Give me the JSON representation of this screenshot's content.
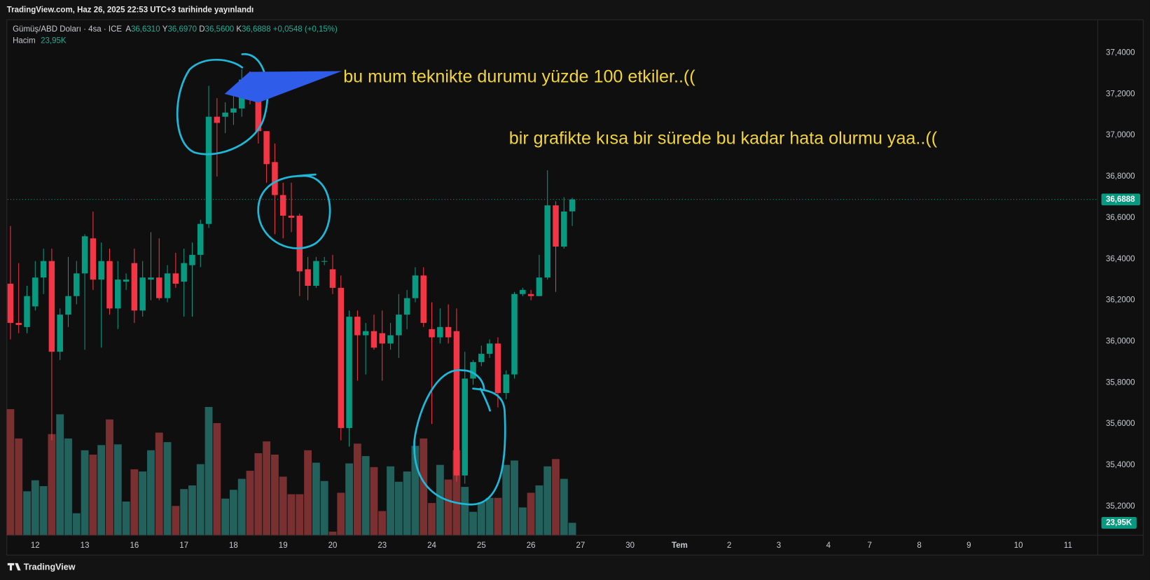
{
  "header": "TradingView.com, Haz 26, 2025 22:53 UTC+3 tarihinde yayınlandı",
  "footer": "TradingView",
  "chart_data": {
    "type": "candlestick",
    "legend": {
      "symbol": "Gümüş/ABD Doları · 4sa · ICE",
      "open_label": "A",
      "open": "36,6310",
      "high_label": "Y",
      "high": "36,6970",
      "low_label": "D",
      "low": "36,5600",
      "close_label": "K",
      "close": "36,6888",
      "change": "+0,0548 (+0,15%)",
      "volume_label": "Hacim",
      "volume": "23,95K"
    },
    "annotations": [
      "bu mum teknikte  durumu yüzde 100 etkiler..((",
      "bir grafikte kısa bir sürede bu kadar hata olurmu yaa..(("
    ],
    "open": [
      36.28,
      36.09,
      36.07,
      36.17,
      36.31,
      36.39,
      35.95,
      36.13,
      36.22,
      36.33,
      36.5,
      36.3,
      36.39,
      36.16,
      36.29,
      36.38,
      36.15,
      36.3,
      36.31,
      36.21,
      36.33,
      36.29,
      36.37,
      36.42,
      36.57,
      37.09,
      37.09,
      37.11,
      37.13,
      37.27,
      37.25,
      37.02,
      36.87,
      36.71,
      36.61,
      36.61,
      36.35,
      36.27,
      36.39,
      36.35,
      36.26,
      35.58,
      36.12,
      36.03,
      36.05,
      36.04,
      35.99,
      36.03,
      36.13,
      36.21,
      36.32,
      36.06,
      36.02,
      36.07,
      36.05,
      35.35,
      35.82,
      35.9,
      35.94,
      35.99,
      35.75,
      35.84,
      36.23,
      36.23,
      36.22,
      36.31,
      36.66,
      36.46,
      36.631
    ],
    "high": [
      36.56,
      36.38,
      36.27,
      36.39,
      36.45,
      36.45,
      36.16,
      36.41,
      36.39,
      36.52,
      36.63,
      36.48,
      36.45,
      36.39,
      36.33,
      36.45,
      36.39,
      36.53,
      36.5,
      36.37,
      36.43,
      36.45,
      36.48,
      36.59,
      37.24,
      37.18,
      37.16,
      37.21,
      37.32,
      37.31,
      37.27,
      37.02,
      36.96,
      36.77,
      36.77,
      36.62,
      36.41,
      36.41,
      36.41,
      36.42,
      36.32,
      36.15,
      36.15,
      36.09,
      36.13,
      36.15,
      36.09,
      36.23,
      36.25,
      36.36,
      36.36,
      36.19,
      36.16,
      36.18,
      36.16,
      35.95,
      35.91,
      35.98,
      36.01,
      36.02,
      35.86,
      36.24,
      36.26,
      36.25,
      36.42,
      36.83,
      36.68,
      36.7,
      36.697
    ],
    "low": [
      36.01,
      36.04,
      36.04,
      36.15,
      36.23,
      35.52,
      35.91,
      36.07,
      36.18,
      35.96,
      36.25,
      35.97,
      36.13,
      36.06,
      36.25,
      36.09,
      36.12,
      36.2,
      36.2,
      36.19,
      36.26,
      36.12,
      36.12,
      36.36,
      36.55,
      36.8,
      37.01,
      37.05,
      37.09,
      37.15,
      36.96,
      36.77,
      36.52,
      36.5,
      36.53,
      36.22,
      36.2,
      36.26,
      36.37,
      36.23,
      35.52,
      35.49,
      35.81,
      35.84,
      35.96,
      35.81,
      35.96,
      35.92,
      36.06,
      36.19,
      36.07,
      35.6,
      35.99,
      35.99,
      35.32,
      35.31,
      35.79,
      35.88,
      35.92,
      35.68,
      35.72,
      35.82,
      36.22,
      36.2,
      36.22,
      36.3,
      36.24,
      36.45,
      36.56
    ],
    "close": [
      36.09,
      36.08,
      36.22,
      36.31,
      36.39,
      35.95,
      36.13,
      36.22,
      36.33,
      36.51,
      36.3,
      36.39,
      36.16,
      36.3,
      36.3,
      36.15,
      36.31,
      36.31,
      36.21,
      36.33,
      36.28,
      36.38,
      36.42,
      36.57,
      37.09,
      37.06,
      37.11,
      37.13,
      37.27,
      37.18,
      37.02,
      36.86,
      36.71,
      36.61,
      36.6,
      36.34,
      36.27,
      36.39,
      36.39,
      36.26,
      35.58,
      36.12,
      36.03,
      36.05,
      35.97,
      35.99,
      36.03,
      36.13,
      36.21,
      36.32,
      36.09,
      36.02,
      36.07,
      36.02,
      35.35,
      35.82,
      35.9,
      35.94,
      35.99,
      35.75,
      35.84,
      36.23,
      36.25,
      36.22,
      36.31,
      36.66,
      36.46,
      36.63,
      36.6888
    ],
    "volume": [
      242.4,
      186,
      84.5,
      105.7,
      94.4,
      194.4,
      232.5,
      186,
      42.3,
      163.4,
      155,
      173.3,
      222.6,
      174.7,
      64.8,
      126.8,
      122.6,
      163.4,
      197.3,
      179,
      56.4,
      88.8,
      95.8,
      136.7,
      246.6,
      215.6,
      70.5,
      87.4,
      108.5,
      124,
      157.8,
      180.4,
      155,
      112.7,
      78.9,
      78.9,
      163.4,
      139.5,
      104.3,
      7,
      81.7,
      138.1,
      176.1,
      152.2,
      131,
      46.5,
      132.4,
      102.9,
      122.6,
      171.9,
      186,
      62,
      135.3,
      107.1,
      163.4,
      93,
      45.1,
      63.4,
      71.9,
      71.9,
      135.3,
      143.7,
      53.5,
      81.7,
      95.8,
      132.4,
      146.5,
      108.5,
      23.95
    ],
    "last_price_label": "36,6888",
    "last_volume_label": "23,95K",
    "up_color": "#089981",
    "down_color": "#f23645",
    "volume_up_color": "#22615c",
    "volume_down_color": "#7a2f31",
    "xlim": [
      -0.35,
      131.6
    ],
    "ylim": [
      35.06,
      37.56
    ],
    "xticks": [
      {
        "value": 3,
        "label": "12"
      },
      {
        "value": 9,
        "label": "13"
      },
      {
        "value": 15,
        "label": "16"
      },
      {
        "value": 21,
        "label": "17"
      },
      {
        "value": 27,
        "label": "18"
      },
      {
        "value": 33,
        "label": "19"
      },
      {
        "value": 39,
        "label": "20"
      },
      {
        "value": 45,
        "label": "23"
      },
      {
        "value": 51,
        "label": "24"
      },
      {
        "value": 57,
        "label": "25"
      },
      {
        "value": 63,
        "label": "26"
      },
      {
        "value": 69,
        "label": "27"
      },
      {
        "value": 75,
        "label": "30"
      },
      {
        "value": 81,
        "label": "Tem"
      },
      {
        "value": 87,
        "label": "2"
      },
      {
        "value": 93,
        "label": "3"
      },
      {
        "value": 99,
        "label": "4"
      },
      {
        "value": 104,
        "label": "7"
      },
      {
        "value": 110,
        "label": "8"
      },
      {
        "value": 116,
        "label": "9"
      },
      {
        "value": 122,
        "label": "10"
      },
      {
        "value": 128,
        "label": "11"
      }
    ],
    "yticks": [
      {
        "value": 35.2,
        "label": "35,2000"
      },
      {
        "value": 35.4,
        "label": "35,4000"
      },
      {
        "value": 35.6,
        "label": "35,6000"
      },
      {
        "value": 35.8,
        "label": "35,8000"
      },
      {
        "value": 36.0,
        "label": "36,0000"
      },
      {
        "value": 36.2,
        "label": "36,2000"
      },
      {
        "value": 36.4,
        "label": "36,4000"
      },
      {
        "value": 36.6,
        "label": "36,6000"
      },
      {
        "value": 36.8,
        "label": "36,8000"
      },
      {
        "value": 37.0,
        "label": "37,0000"
      },
      {
        "value": 37.2,
        "label": "37,2000"
      },
      {
        "value": 37.4,
        "label": "37,4000"
      }
    ],
    "grid": true
  }
}
